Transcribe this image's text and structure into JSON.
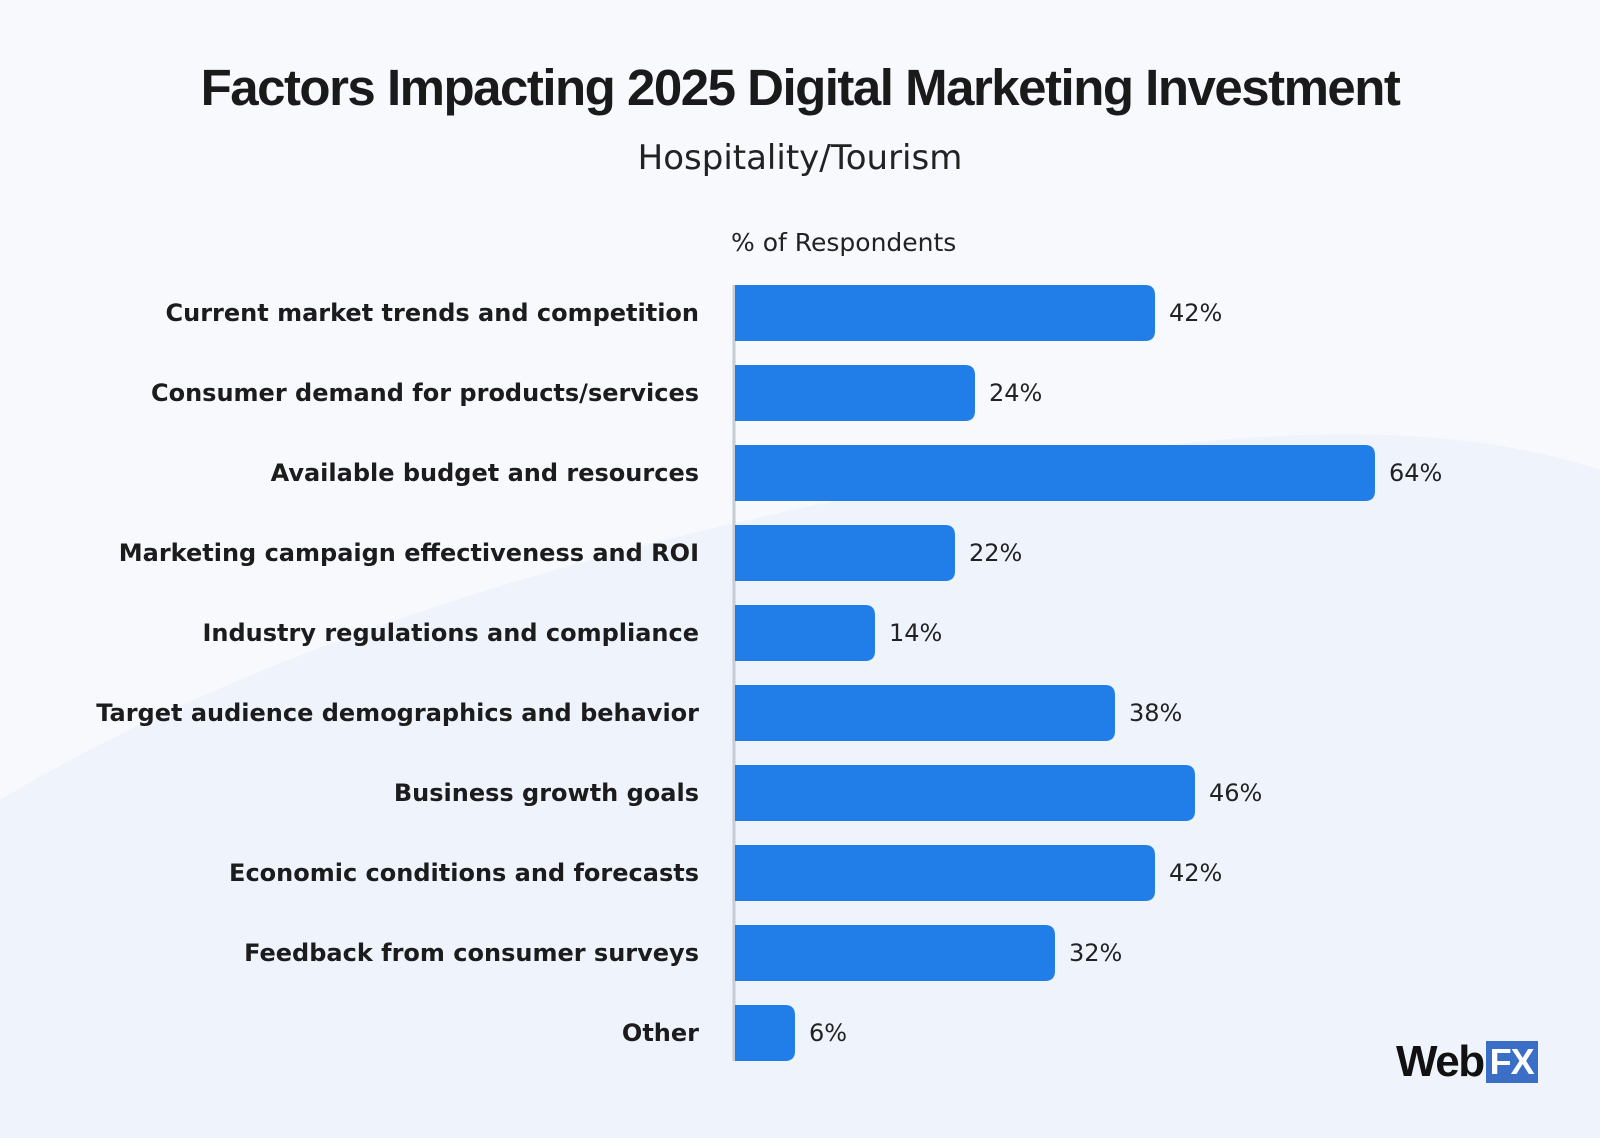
{
  "colors": {
    "bar": "#217de8",
    "axis_line": "#c7cbd3",
    "logo_box": "#3b6fc7",
    "background": "#f7f9fd"
  },
  "logo": {
    "text_web": "Web",
    "text_fx": "FX"
  },
  "chart_data": {
    "type": "bar",
    "orientation": "horizontal",
    "title": "Factors Impacting 2025 Digital Marketing Investment",
    "subtitle": "Hospitality/Tourism",
    "xlabel": "% of Respondents",
    "ylabel": "",
    "xlim": [
      0,
      70
    ],
    "grid": false,
    "legend": "none",
    "categories": [
      "Current market trends and competition",
      "Consumer demand for products/services",
      "Available budget and resources",
      "Marketing campaign effectiveness and ROI",
      "Industry regulations and compliance",
      "Target audience demographics and behavior",
      "Business growth goals",
      "Economic conditions and forecasts",
      "Feedback from consumer surveys",
      "Other"
    ],
    "values": [
      42,
      24,
      64,
      22,
      14,
      38,
      46,
      42,
      32,
      6
    ],
    "value_labels": [
      "42%",
      "24%",
      "64%",
      "22%",
      "14%",
      "38%",
      "46%",
      "42%",
      "32%",
      "6%"
    ]
  }
}
